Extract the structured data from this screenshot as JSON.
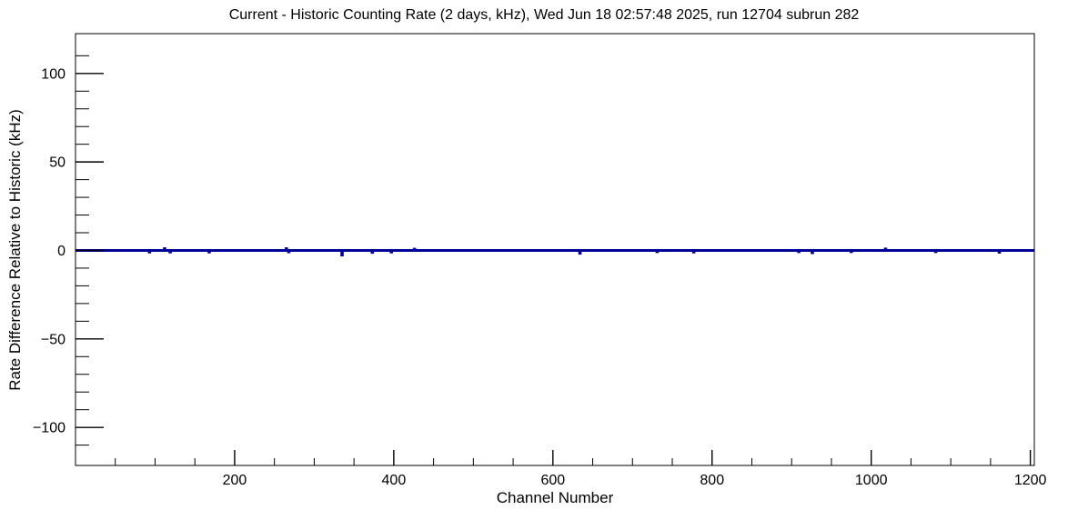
{
  "chart_data": {
    "type": "line",
    "title": "Current - Historic Counting Rate (2 days, kHz), Wed Jun 18 02:57:48 2025, run 12704 subrun 282",
    "xlabel": "Channel Number",
    "ylabel": "Rate Difference Relative to Historic (kHz)",
    "xlim": [
      0,
      1205
    ],
    "ylim": [
      -121.5,
      122.5
    ],
    "grid": false,
    "legend": null,
    "x_major_ticks": [
      {
        "value": 200,
        "label": "200"
      },
      {
        "value": 400,
        "label": "400"
      },
      {
        "value": 600,
        "label": "600"
      },
      {
        "value": 800,
        "label": "800"
      },
      {
        "value": 1000,
        "label": "1000"
      },
      {
        "value": 1200,
        "label": "1200"
      }
    ],
    "x_minor_step": 50,
    "y_major_ticks": [
      {
        "value": 100,
        "label": "100"
      },
      {
        "value": 50,
        "label": "50"
      },
      {
        "value": 0,
        "label": "0"
      },
      {
        "value": -50,
        "label": "−50"
      },
      {
        "value": -100,
        "label": "−100"
      }
    ],
    "y_minor_step": 10,
    "y_minor_range": [
      -110,
      110
    ],
    "series": [
      {
        "name": "rate_difference_current_minus_historic",
        "color": "#000099",
        "baseline": 0,
        "deviations": [
          [
            93,
            -0.9
          ],
          [
            112,
            1.0
          ],
          [
            119,
            -0.9
          ],
          [
            168,
            -0.9
          ],
          [
            265,
            1.0
          ],
          [
            268,
            -0.8
          ],
          [
            335,
            -2.6
          ],
          [
            373,
            -1.1
          ],
          [
            397,
            -0.9
          ],
          [
            426,
            0.7
          ],
          [
            634,
            -1.6
          ],
          [
            731,
            -0.7
          ],
          [
            777,
            -0.9
          ],
          [
            909,
            -0.7
          ],
          [
            926,
            -1.3
          ],
          [
            975,
            -0.7
          ],
          [
            1018,
            0.8
          ],
          [
            1081,
            -0.7
          ],
          [
            1161,
            -1.0
          ]
        ]
      }
    ],
    "frame_color": "#000000",
    "background_color": "#ffffff"
  }
}
